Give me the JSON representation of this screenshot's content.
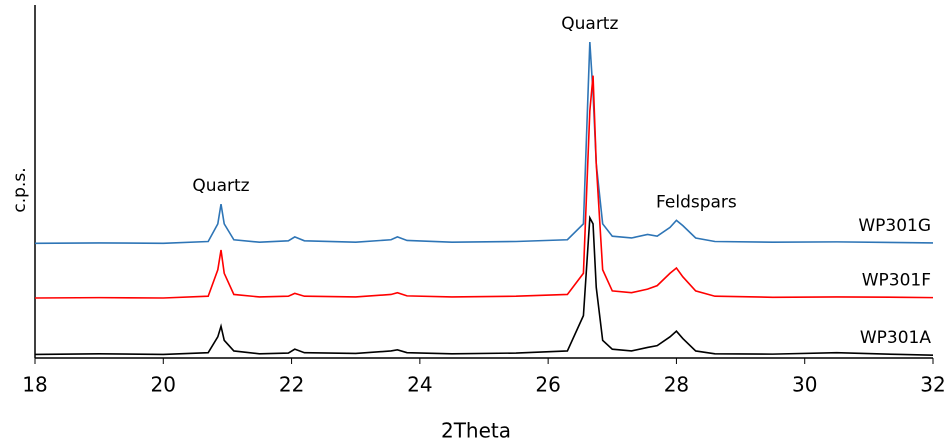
{
  "chart_data": {
    "type": "line",
    "x_label": "2Theta",
    "y_label": "c.p.s.",
    "x": [
      18,
      19,
      20,
      20.7,
      20.85,
      20.9,
      20.95,
      21.1,
      21.5,
      21.95,
      22.05,
      22.2,
      23,
      23.55,
      23.65,
      23.8,
      24.5,
      25.5,
      26.3,
      26.55,
      26.65,
      26.7,
      26.75,
      26.85,
      27.0,
      27.3,
      27.55,
      27.7,
      27.9,
      28.0,
      28.1,
      28.3,
      28.6,
      29.5,
      30.5,
      31.5,
      32
    ],
    "series": [
      {
        "name": "WP301G",
        "color": "#2e75b6",
        "values": [
          32.5,
          32.6,
          32.5,
          33,
          38,
          43.6,
          38,
          33.5,
          32.8,
          33.2,
          34.3,
          33.2,
          32.8,
          33.5,
          34.3,
          33.3,
          32.8,
          33,
          33.5,
          38,
          89.5,
          75,
          55,
          38,
          34.5,
          34,
          35,
          34.5,
          37,
          39,
          37.5,
          34,
          33,
          32.8,
          32.9,
          32.7,
          32.6
        ]
      },
      {
        "name": "WP301F",
        "color": "#ff0000",
        "values": [
          17,
          17.1,
          17,
          17.5,
          25,
          30.6,
          24,
          18,
          17.3,
          17.5,
          18.3,
          17.5,
          17.3,
          18,
          18.5,
          17.6,
          17.3,
          17.5,
          18,
          24,
          70,
          80,
          55,
          25,
          19,
          18.5,
          19.5,
          20.5,
          24,
          25.5,
          23,
          19,
          17.5,
          17.2,
          17.3,
          17.2,
          17.1
        ]
      },
      {
        "name": "WP301A",
        "color": "#000000",
        "values": [
          1,
          1.2,
          1,
          1.5,
          6,
          9,
          5,
          2,
          1.2,
          1.4,
          2.5,
          1.5,
          1.3,
          2,
          2.3,
          1.5,
          1.2,
          1.4,
          2,
          12,
          39.7,
          38,
          20,
          5,
          2.5,
          2,
          3,
          3.5,
          6,
          7.6,
          5.5,
          2,
          1.2,
          1.1,
          1.5,
          1,
          0.8
        ]
      }
    ],
    "annotations": [
      {
        "text": "Quartz",
        "x": 20.9
      },
      {
        "text": "Quartz",
        "x": 26.65
      },
      {
        "text": "Feldspars",
        "x": 28.0
      }
    ],
    "xlim": [
      18,
      32
    ],
    "xticks": [
      18,
      20,
      22,
      24,
      26,
      28,
      30,
      32
    ],
    "ylim": [
      0,
      100
    ]
  }
}
